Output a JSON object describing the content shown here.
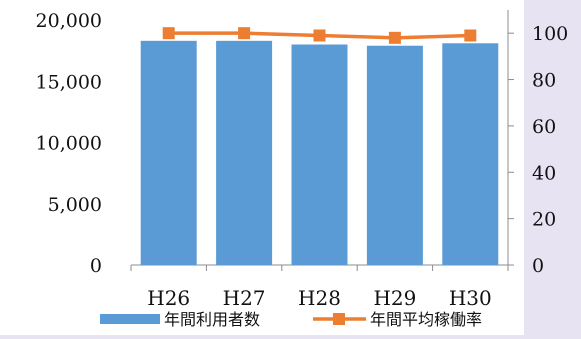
{
  "chart_data": {
    "type": "bar+line",
    "categories": [
      "H26",
      "H27",
      "H28",
      "H29",
      "H30"
    ],
    "series": [
      {
        "name": "年間利用者数",
        "type": "bar",
        "axis": "left",
        "values": [
          18300,
          18300,
          18000,
          17900,
          18100
        ],
        "color": "#5b9bd5"
      },
      {
        "name": "年間平均稼働率",
        "type": "line",
        "axis": "right",
        "values": [
          100,
          100,
          99,
          98,
          99
        ],
        "color": "#ed7d31"
      }
    ],
    "left_axis": {
      "ylim": [
        0,
        20000
      ],
      "ticks": [
        0,
        5000,
        10000,
        15000,
        20000
      ],
      "tick_labels": [
        "0",
        "5,000",
        "10,000",
        "15,000",
        "20,000"
      ]
    },
    "right_axis": {
      "ylim": [
        0,
        110
      ],
      "ticks": [
        0,
        20,
        40,
        60,
        80,
        100
      ],
      "tick_labels": [
        "0",
        "20",
        "40",
        "60",
        "80",
        "100"
      ]
    },
    "grid": false,
    "legend_position": "bottom"
  }
}
